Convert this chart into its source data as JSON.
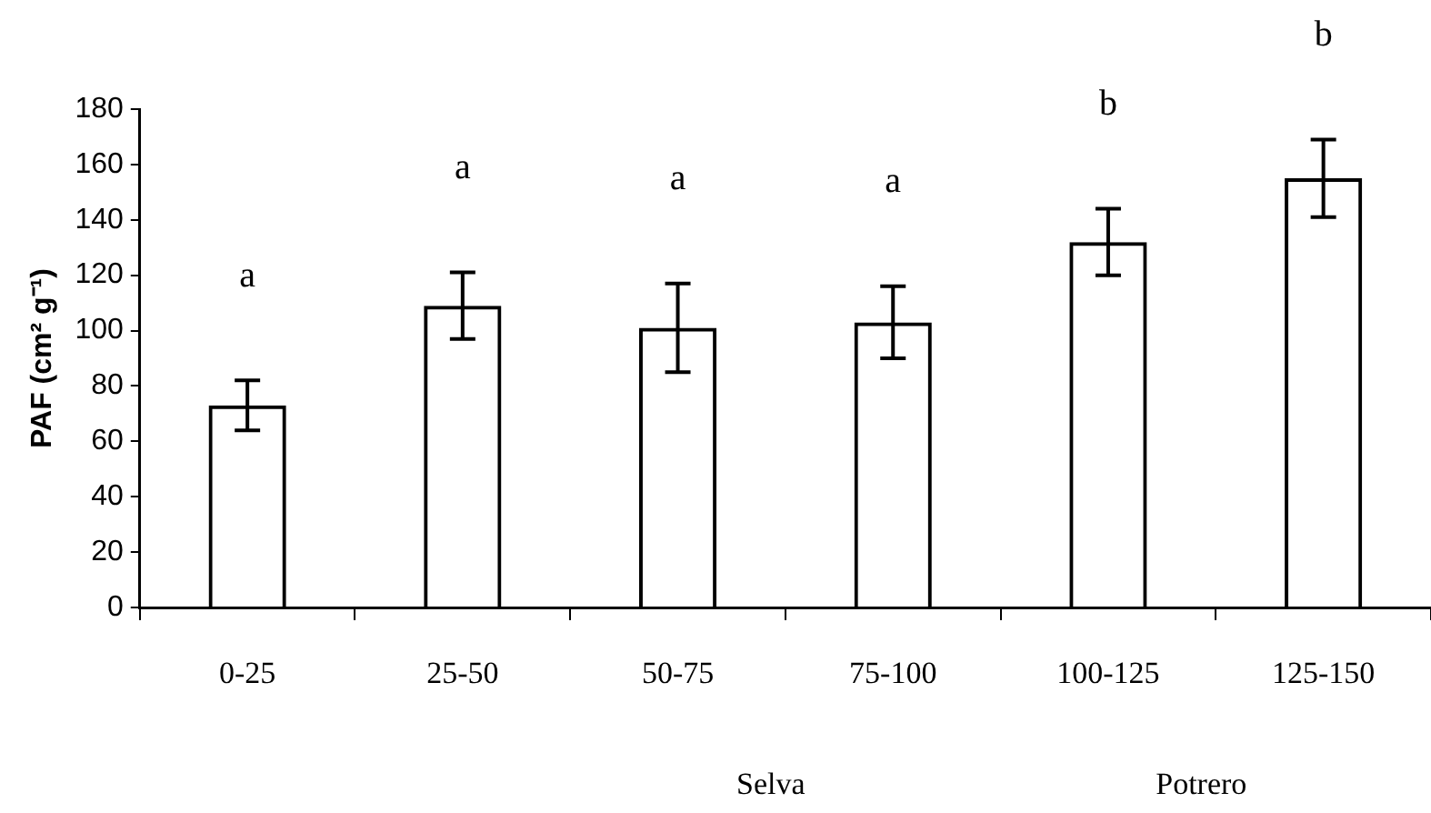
{
  "chart_data": {
    "type": "bar",
    "ylabel": "PAF (cm² g⁻¹)",
    "categories": [
      "0-25",
      "25-50",
      "50-75",
      "75-100",
      "100-125",
      "125-150"
    ],
    "series": [
      {
        "color": "#000000",
        "values": [
          73,
          109,
          101,
          103,
          132,
          155
        ],
        "errors": [
          9,
          12,
          16,
          13,
          12,
          14
        ]
      }
    ],
    "ylim": [
      0,
      180
    ],
    "yticks": [
      0,
      20,
      40,
      60,
      80,
      100,
      120,
      140,
      160,
      180
    ],
    "grid": false,
    "legend": false,
    "annotations": [
      "a",
      "a",
      "a",
      "a",
      "b",
      "b",
      "Selva",
      "Potrero"
    ]
  }
}
